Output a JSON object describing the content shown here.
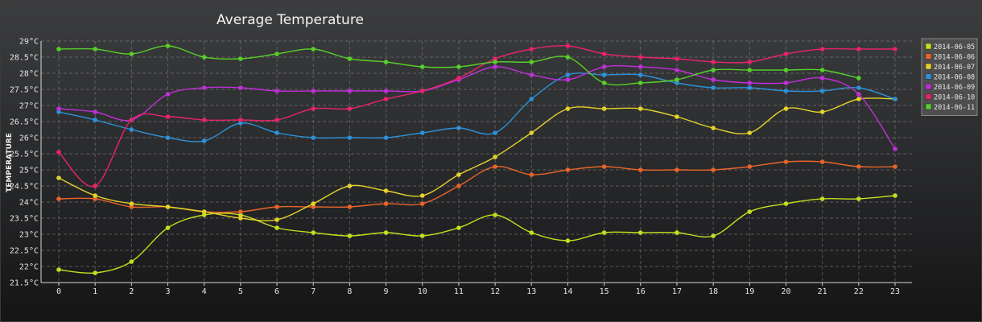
{
  "chart_data": {
    "type": "line",
    "title": "Average Temperature",
    "xlabel": "",
    "ylabel": "TEMPERATURE",
    "x": [
      0,
      1,
      2,
      3,
      4,
      5,
      6,
      7,
      8,
      9,
      10,
      11,
      12,
      13,
      14,
      15,
      16,
      17,
      18,
      19,
      20,
      21,
      22,
      23
    ],
    "ylim": [
      21.5,
      29
    ],
    "y_ticks": [
      21.5,
      22,
      22.5,
      23,
      23.5,
      24,
      24.5,
      25,
      25.5,
      26,
      26.5,
      27,
      27.5,
      28,
      28.5,
      29
    ],
    "y_tick_labels": [
      "21.5°C",
      "22°C",
      "22.5°C",
      "23°C",
      "23.5°C",
      "24°C",
      "24.5°C",
      "25°C",
      "25.5°C",
      "26°C",
      "26.5°C",
      "27°C",
      "27.5°C",
      "28°C",
      "28.5°C",
      "29°C"
    ],
    "grid": true,
    "legend_position": "top-right",
    "series": [
      {
        "name": "2014-06-05",
        "color": "#c4df1f",
        "values": [
          21.9,
          21.8,
          22.15,
          23.2,
          23.6,
          23.6,
          23.2,
          23.05,
          22.95,
          23.05,
          22.95,
          23.2,
          23.6,
          23.05,
          22.8,
          23.05,
          23.05,
          23.05,
          22.95,
          23.7,
          23.95,
          24.1,
          24.1,
          24.2
        ]
      },
      {
        "name": "2014-06-06",
        "color": "#e8652a",
        "values": [
          24.1,
          24.1,
          23.85,
          23.85,
          23.7,
          23.7,
          23.85,
          23.85,
          23.85,
          23.95,
          23.95,
          24.5,
          25.1,
          24.85,
          25.0,
          25.1,
          25.0,
          25.0,
          25.0,
          25.1,
          25.25,
          25.25,
          25.1,
          25.1
        ]
      },
      {
        "name": "2014-06-07",
        "color": "#e4d22a",
        "values": [
          24.75,
          24.2,
          23.95,
          23.85,
          23.7,
          23.5,
          23.45,
          23.95,
          24.5,
          24.35,
          24.2,
          24.85,
          25.4,
          26.15,
          26.9,
          26.9,
          26.9,
          26.65,
          26.3,
          26.15,
          26.9,
          26.8,
          27.2,
          27.2
        ]
      },
      {
        "name": "2014-06-08",
        "color": "#2c92d9",
        "values": [
          26.8,
          26.55,
          26.25,
          26.0,
          25.9,
          26.45,
          26.15,
          26.0,
          26.0,
          26.0,
          26.15,
          26.3,
          26.15,
          27.2,
          27.95,
          27.95,
          27.95,
          27.7,
          27.55,
          27.55,
          27.45,
          27.45,
          27.55,
          27.2
        ]
      },
      {
        "name": "2014-06-09",
        "color": "#c02fd8",
        "values": [
          26.9,
          26.8,
          26.55,
          27.35,
          27.55,
          27.55,
          27.45,
          27.45,
          27.45,
          27.45,
          27.45,
          27.8,
          28.2,
          27.95,
          27.8,
          28.2,
          28.2,
          28.1,
          27.8,
          27.7,
          27.7,
          27.85,
          27.35,
          25.65
        ]
      },
      {
        "name": "2014-06-10",
        "color": "#e8246a",
        "values": [
          25.55,
          24.5,
          26.55,
          26.65,
          26.55,
          26.55,
          26.55,
          26.9,
          26.9,
          27.2,
          27.45,
          27.85,
          28.45,
          28.75,
          28.85,
          28.6,
          28.5,
          28.45,
          28.35,
          28.35,
          28.6,
          28.75,
          28.75,
          28.75
        ]
      },
      {
        "name": "2014-06-11",
        "color": "#57cf2a",
        "values": [
          28.75,
          28.75,
          28.6,
          28.85,
          28.5,
          28.45,
          28.6,
          28.75,
          28.45,
          28.35,
          28.2,
          28.2,
          28.35,
          28.35,
          28.5,
          27.7,
          27.7,
          27.8,
          28.1,
          28.1,
          28.1,
          28.1,
          27.85,
          null
        ]
      }
    ]
  }
}
